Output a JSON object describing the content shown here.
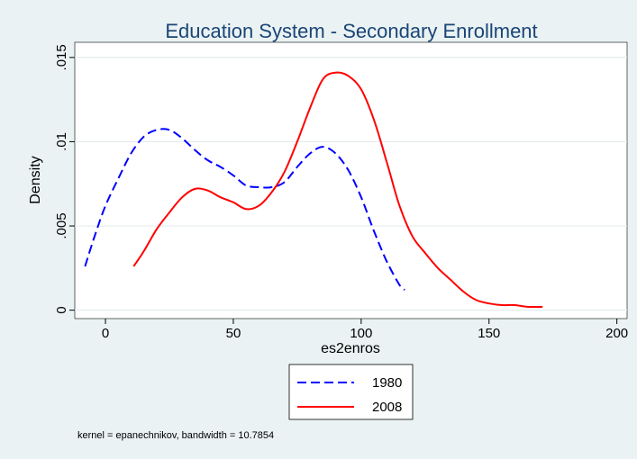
{
  "chart_data": {
    "type": "line",
    "title": "Education System - Secondary Enrollment",
    "xlabel": "es2enros",
    "ylabel": "Density",
    "xlim": [
      -12,
      204
    ],
    "ylim": [
      -0.0005,
      0.0159
    ],
    "xticks": [
      0,
      50,
      100,
      150,
      200
    ],
    "yticks": [
      0,
      0.005,
      0.01,
      0.015
    ],
    "xtick_labels": [
      "0",
      "50",
      "100",
      "150",
      "200"
    ],
    "ytick_labels": [
      "0",
      ".005",
      ".01",
      ".015"
    ],
    "grid": true,
    "legend_position": "bottom-center",
    "note": "kernel = epanechnikov, bandwidth = 10.7854",
    "series": [
      {
        "name": "1980",
        "color": "#0000ff",
        "style": "dashed",
        "x": [
          -8,
          -4,
          0,
          5,
          10,
          15,
          20,
          25,
          30,
          35,
          40,
          45,
          50,
          55,
          60,
          65,
          70,
          75,
          80,
          85,
          90,
          95,
          100,
          105,
          110,
          115,
          117
        ],
        "y": [
          0.0026,
          0.0045,
          0.0062,
          0.0078,
          0.0093,
          0.0103,
          0.0107,
          0.0107,
          0.0102,
          0.0095,
          0.0089,
          0.0085,
          0.008,
          0.0074,
          0.0073,
          0.0073,
          0.0076,
          0.0085,
          0.0093,
          0.0097,
          0.0093,
          0.0083,
          0.0067,
          0.0047,
          0.0029,
          0.0015,
          0.0012
        ]
      },
      {
        "name": "2008",
        "color": "#ff0000",
        "style": "solid",
        "x": [
          11,
          15,
          20,
          25,
          30,
          35,
          40,
          45,
          50,
          55,
          60,
          65,
          70,
          75,
          80,
          85,
          90,
          95,
          100,
          105,
          110,
          115,
          120,
          125,
          130,
          135,
          140,
          145,
          150,
          155,
          160,
          165,
          171
        ],
        "y": [
          0.0026,
          0.0035,
          0.0048,
          0.0058,
          0.0067,
          0.0072,
          0.0071,
          0.0067,
          0.0064,
          0.006,
          0.0062,
          0.007,
          0.0082,
          0.01,
          0.012,
          0.0137,
          0.0141,
          0.0139,
          0.0131,
          0.0113,
          0.0088,
          0.0062,
          0.0044,
          0.0034,
          0.0025,
          0.0018,
          0.0011,
          0.0006,
          0.0004,
          0.0003,
          0.0003,
          0.0002,
          0.0002
        ]
      }
    ]
  }
}
